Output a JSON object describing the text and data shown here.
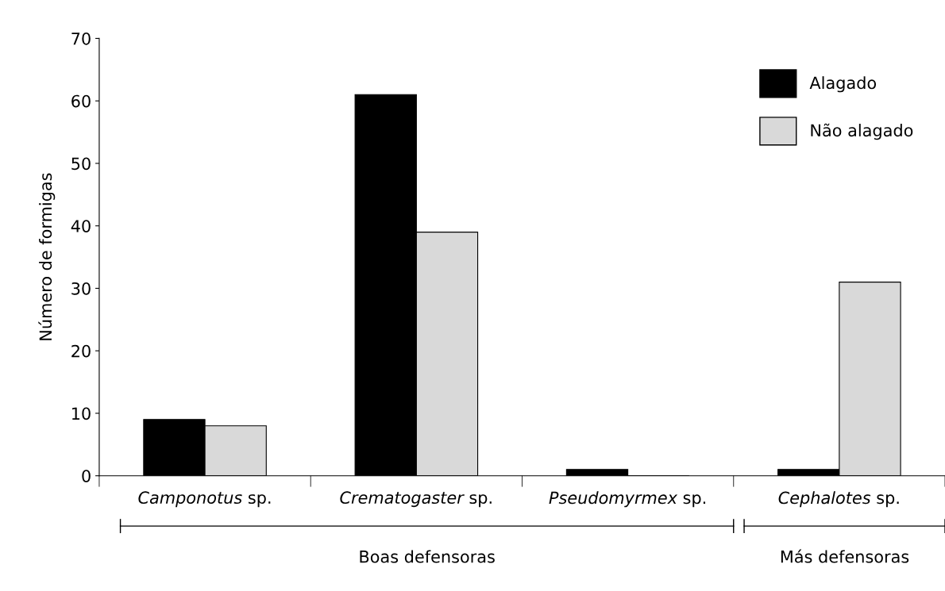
{
  "chart_data": {
    "type": "bar",
    "ylabel": "Número de formigas",
    "categories": [
      "Camponotus sp.",
      "Crematogaster sp.",
      "Pseudomyrmex sp.",
      "Cephalotes sp."
    ],
    "series": [
      {
        "name": "Alagado",
        "color": "#000000",
        "values": [
          9,
          61,
          1,
          1
        ]
      },
      {
        "name": "Não alagado",
        "color": "#d9d9d9",
        "values": [
          8,
          39,
          0,
          31
        ]
      }
    ],
    "ylim": [
      0,
      70
    ],
    "yticks": [
      0,
      10,
      20,
      30,
      40,
      50,
      60,
      70
    ],
    "grid": false,
    "legend": "top right",
    "annotations": [
      "Boas defensoras",
      "Más defensoras"
    ]
  }
}
